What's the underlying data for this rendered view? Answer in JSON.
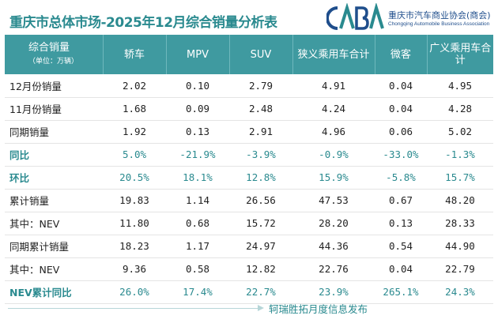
{
  "title": "重庆市总体市场-2025年12月综合销量分析表",
  "logo": {
    "mark_text": "CABA",
    "name_cn": "重庆市汽车商业协会(商会)",
    "name_en": "Chongqing Automobile Business Association"
  },
  "table": {
    "header": {
      "first": "综合销量",
      "unit": "（单位：万辆）",
      "columns": [
        "轿车",
        "MPV",
        "SUV",
        "狭义乘用车合计",
        "微客",
        "广义乘用车合计"
      ]
    },
    "rows": [
      {
        "label": "12月份销量",
        "values": [
          "2.02",
          "0.10",
          "2.79",
          "4.91",
          "0.04",
          "4.95"
        ]
      },
      {
        "label": "11月份销量",
        "values": [
          "1.68",
          "0.09",
          "2.48",
          "4.24",
          "0.04",
          "4.28"
        ]
      },
      {
        "label": "同期销量",
        "values": [
          "1.92",
          "0.13",
          "2.91",
          "4.96",
          "0.06",
          "5.02"
        ]
      },
      {
        "label": "同比",
        "values": [
          "5.0%",
          "-21.9%",
          "-3.9%",
          "-0.9%",
          "-33.0%",
          "-1.3%"
        ]
      },
      {
        "label": "环比",
        "values": [
          "20.5%",
          "18.1%",
          "12.8%",
          "15.9%",
          "-5.8%",
          "15.7%"
        ]
      },
      {
        "label": "累计销量",
        "values": [
          "19.83",
          "1.14",
          "26.56",
          "47.53",
          "0.67",
          "48.20"
        ]
      },
      {
        "label": "其中：NEV",
        "values": [
          "11.80",
          "0.68",
          "15.72",
          "28.20",
          "0.13",
          "28.33"
        ]
      },
      {
        "label": "同期累计销量",
        "values": [
          "18.23",
          "1.17",
          "24.97",
          "44.36",
          "0.54",
          "44.90"
        ]
      },
      {
        "label": "其中：NEV",
        "values": [
          "9.36",
          "0.58",
          "12.82",
          "22.76",
          "0.04",
          "22.79"
        ]
      },
      {
        "label": "NEV累计同比",
        "values": [
          "26.0%",
          "17.4%",
          "22.7%",
          "23.9%",
          "265.1%",
          "24.3%"
        ]
      }
    ]
  },
  "footer": {
    "text": "轲瑞胜拓月度信息发布"
  },
  "colors": {
    "accent": "#2a8a8f",
    "header_bg": "#3f9aa0",
    "logo_blue": "#1f4e8c"
  }
}
